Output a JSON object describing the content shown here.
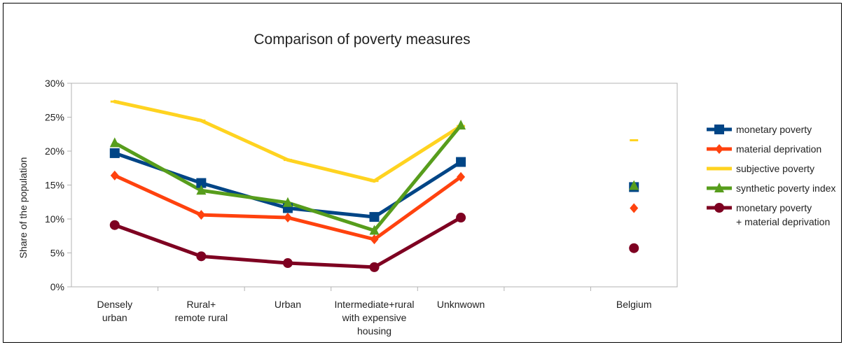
{
  "chart_data": {
    "type": "line",
    "title": "Comparison of poverty measures",
    "xlabel": "",
    "ylabel": "Share of the population",
    "ylim": [
      0,
      30
    ],
    "yticks": [
      "0%",
      "5%",
      "10%",
      "15%",
      "20%",
      "25%",
      "30%"
    ],
    "categories": [
      [
        "Densely",
        "urban"
      ],
      [
        "Rural+",
        "remote rural"
      ],
      [
        "Urban"
      ],
      [
        "Intermediate+rural",
        "with expensive",
        "housing"
      ],
      [
        "Unknwown"
      ],
      [
        ""
      ],
      [
        "Belgium"
      ]
    ],
    "grid": false,
    "legend_position": "right",
    "series": [
      {
        "name": "monetary poverty",
        "color": "#004586",
        "marker": "square",
        "values": [
          19.7,
          15.3,
          11.6,
          10.3,
          18.4,
          null,
          14.7
        ]
      },
      {
        "name": "material deprivation",
        "color": "#ff420e",
        "marker": "diamond",
        "values": [
          16.4,
          10.6,
          10.2,
          7.0,
          16.2,
          null,
          11.6
        ]
      },
      {
        "name": "subjective poverty",
        "color": "#ffd320",
        "marker": "dash",
        "values": [
          27.3,
          24.5,
          18.7,
          15.6,
          23.7,
          null,
          21.6
        ]
      },
      {
        "name": "synthetic poverty index",
        "color": "#579d1c",
        "marker": "triangle",
        "values": [
          21.2,
          14.2,
          12.4,
          8.3,
          23.8,
          null,
          14.9
        ]
      },
      {
        "name": "monetary poverty\n+ material deprivation",
        "color": "#7e0021",
        "marker": "circle",
        "values": [
          9.1,
          4.5,
          3.5,
          2.9,
          10.2,
          null,
          5.7
        ]
      }
    ]
  }
}
